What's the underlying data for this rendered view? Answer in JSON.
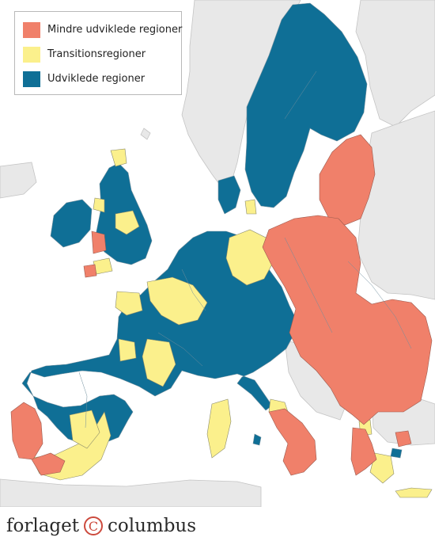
{
  "colors": {
    "sea": "#ffffff",
    "non_eu_land": "#e8e8e8",
    "border": "#7a7a7a",
    "less_developed": "#f0806a",
    "transition": "#fbf08c",
    "developed": "#0f6f96"
  },
  "legend": {
    "items": [
      {
        "label": "Mindre udviklede regioner",
        "color": "#f0806a"
      },
      {
        "label": "Transitionsregioner",
        "color": "#fbf08c"
      },
      {
        "label": "Udviklede regioner",
        "color": "#0f6f96"
      }
    ]
  },
  "brand": {
    "left": "forlaget",
    "mark": "C",
    "right": "columbus"
  }
}
